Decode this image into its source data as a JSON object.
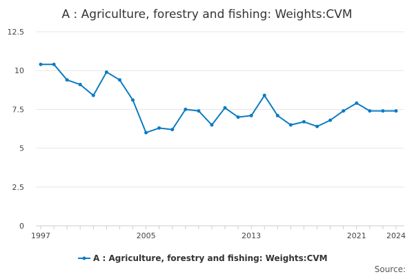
{
  "chart_data": {
    "type": "line",
    "title": "A : Agriculture, forestry and fishing: Weights:CVM",
    "xlabel": "",
    "ylabel": "",
    "x": [
      1997,
      1998,
      1999,
      2000,
      2001,
      2002,
      2003,
      2004,
      2005,
      2006,
      2007,
      2008,
      2009,
      2010,
      2011,
      2012,
      2013,
      2014,
      2015,
      2016,
      2017,
      2018,
      2019,
      2020,
      2021,
      2022,
      2023,
      2024
    ],
    "x_tick_labels": [
      "1997",
      "2005",
      "2013",
      "2021",
      "2024"
    ],
    "y_ticks": [
      "0",
      "2.5",
      "5",
      "7.5",
      "10",
      "12.5"
    ],
    "ylim": [
      0,
      12.5
    ],
    "xlim": [
      1997,
      2024
    ],
    "grid": "horizontal",
    "legend": "bottom-center",
    "series": [
      {
        "name": "A : Agriculture, forestry and fishing: Weights:CVM",
        "color": "#0b7bc1",
        "values": [
          10.4,
          10.4,
          9.4,
          9.1,
          8.4,
          9.9,
          9.4,
          8.1,
          6.0,
          6.3,
          6.2,
          7.5,
          7.4,
          6.5,
          7.6,
          7.0,
          7.1,
          8.4,
          7.1,
          6.5,
          6.7,
          6.4,
          6.8,
          7.4,
          7.9,
          7.4,
          7.4,
          7.4
        ]
      }
    ]
  },
  "credit": "Source:"
}
